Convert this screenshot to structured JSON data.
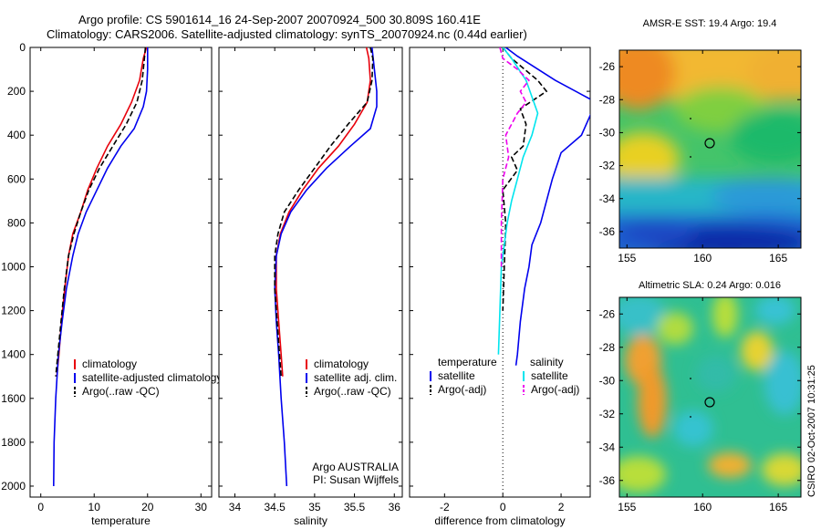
{
  "header": {
    "line1": "Argo profile: CS 5901614_16 24-Sep-2007 20070924_500 30.809S 160.41E",
    "line2": "Climatology: CARS2006. Satellite-adjusted climatology: synTS_20070924.nc (0.44d earlier)"
  },
  "side_note": "CSIRO 02-Oct-2007 10:31:25",
  "colors": {
    "climatology": "#e8000b",
    "satellite": "#0000ee",
    "argo": "#000000",
    "sal_satellite": "#00e5ee",
    "sal_argo": "#ee00ee"
  },
  "chart_data": [
    {
      "type": "line",
      "panel": "temperature",
      "xlabel": "temperature",
      "ylabel": "",
      "xlim": [
        -2,
        32
      ],
      "ylim": [
        2050,
        0
      ],
      "xticks": [
        "0",
        "10",
        "20",
        "30"
      ],
      "yticks": [
        "0",
        "200",
        "400",
        "600",
        "800",
        "1000",
        "1200",
        "1400",
        "1600",
        "1800",
        "2000"
      ],
      "legend": [
        "climatology",
        "satellite-adjusted climatology",
        "Argo(..raw -QC)"
      ],
      "series": [
        {
          "name": "climatology",
          "x": [
            19.8,
            19.2,
            18.5,
            17.0,
            15.0,
            12.5,
            10.5,
            8.8,
            7.5,
            6.0,
            5.2,
            4.5,
            3.9,
            3.4,
            3.0
          ],
          "y": [
            0,
            50,
            150,
            250,
            350,
            450,
            550,
            650,
            750,
            850,
            950,
            1100,
            1250,
            1400,
            1500
          ]
        },
        {
          "name": "satellite-adjusted climatology",
          "x": [
            20.0,
            20.0,
            19.8,
            19.2,
            17.5,
            15.0,
            12.5,
            10.5,
            8.5,
            7.0,
            6.0,
            4.8,
            4.0,
            3.3,
            2.8,
            2.5,
            2.4
          ],
          "y": [
            0,
            100,
            200,
            270,
            370,
            450,
            550,
            650,
            750,
            850,
            950,
            1100,
            1250,
            1400,
            1600,
            1800,
            2000
          ]
        },
        {
          "name": "Argo(..raw -QC)",
          "x": [
            19.6,
            19.4,
            19.0,
            18.0,
            16.0,
            13.5,
            11.0,
            9.0,
            7.5,
            6.2,
            5.2,
            4.4,
            3.8,
            3.2,
            2.8
          ],
          "y": [
            0,
            50,
            150,
            250,
            350,
            450,
            550,
            650,
            750,
            850,
            950,
            1100,
            1250,
            1400,
            1500
          ]
        }
      ]
    },
    {
      "type": "line",
      "panel": "salinity",
      "xlabel": "salinity",
      "ylabel": "",
      "xlim": [
        33.8,
        36.1
      ],
      "ylim": [
        2050,
        0
      ],
      "xticks": [
        "34",
        "34.5",
        "35",
        "35.5",
        "36"
      ],
      "legend": [
        "climatology",
        "satellite adj. clim.",
        "Argo(..raw -QC)"
      ],
      "annotation": [
        "Argo AUSTRALIA",
        "PI: Susan Wijffels"
      ],
      "series": [
        {
          "name": "climatology",
          "x": [
            35.65,
            35.68,
            35.7,
            35.66,
            35.5,
            35.3,
            35.05,
            34.85,
            34.68,
            34.57,
            34.52,
            34.52,
            34.55,
            34.58,
            34.6
          ],
          "y": [
            0,
            50,
            150,
            250,
            350,
            450,
            550,
            650,
            750,
            850,
            950,
            1100,
            1250,
            1400,
            1500
          ]
        },
        {
          "name": "satellite adj. clim.",
          "x": [
            35.72,
            35.75,
            35.78,
            35.78,
            35.7,
            35.45,
            35.15,
            34.9,
            34.7,
            34.58,
            34.52,
            34.5,
            34.52,
            34.55,
            34.58,
            34.62,
            34.65
          ],
          "y": [
            0,
            100,
            200,
            270,
            370,
            450,
            550,
            650,
            750,
            850,
            950,
            1100,
            1250,
            1400,
            1600,
            1800,
            2000
          ]
        },
        {
          "name": "Argo(..raw -QC)",
          "x": [
            35.7,
            35.73,
            35.72,
            35.66,
            35.42,
            35.2,
            35.0,
            34.8,
            34.62,
            34.54,
            34.5,
            34.5,
            34.53,
            34.56,
            34.58
          ],
          "y": [
            0,
            50,
            150,
            250,
            350,
            450,
            550,
            650,
            750,
            850,
            950,
            1100,
            1250,
            1400,
            1500
          ]
        }
      ]
    },
    {
      "type": "line",
      "panel": "difference",
      "xlabel": "difference from climatology",
      "ylabel": "",
      "xlim": [
        -3.2,
        3.0
      ],
      "ylim": [
        2050,
        0
      ],
      "xticks": [
        "-2",
        "0",
        "2"
      ],
      "legend_groups": [
        {
          "heading": "temperature",
          "items": [
            "satellite",
            "Argo(-adj)"
          ]
        },
        {
          "heading": "salinity",
          "items": [
            "satellite",
            "Argo(-adj)"
          ]
        }
      ],
      "series": [
        {
          "name": "temperature satellite",
          "x": [
            0.1,
            0.5,
            1.8,
            3.2,
            2.7,
            2.0,
            1.7,
            1.5,
            1.3,
            1.0,
            0.9,
            0.75,
            0.6,
            0.5,
            0.45
          ],
          "y": [
            0,
            40,
            150,
            250,
            400,
            480,
            600,
            700,
            800,
            900,
            1000,
            1100,
            1250,
            1400,
            1450
          ]
        },
        {
          "name": "temperature Argo(-adj)",
          "x": [
            0.0,
            0.3,
            1.2,
            1.5,
            0.6,
            0.8,
            0.7,
            0.3,
            0.5,
            0.0,
            0.1,
            0.05,
            0.0
          ],
          "y": [
            0,
            50,
            150,
            200,
            280,
            350,
            450,
            500,
            560,
            650,
            800,
            1000,
            1200
          ]
        },
        {
          "name": "salinity satellite",
          "x": [
            0.0,
            0.3,
            0.8,
            1.2,
            1.0,
            0.7,
            0.5,
            0.3,
            0.15,
            0.05,
            -0.05,
            -0.1,
            -0.15
          ],
          "y": [
            0,
            50,
            150,
            300,
            400,
            500,
            600,
            700,
            800,
            900,
            1000,
            1200,
            1400
          ]
        },
        {
          "name": "salinity Argo(-adj)",
          "x": [
            -0.1,
            0.0,
            0.5,
            0.9,
            0.6,
            0.8,
            0.5,
            0.3,
            0.1,
            0.2,
            0.0,
            -0.05,
            -0.05
          ],
          "y": [
            0,
            50,
            100,
            150,
            200,
            250,
            300,
            350,
            400,
            500,
            600,
            800,
            1000
          ]
        }
      ]
    },
    {
      "type": "heatmap",
      "panel": "sst_map",
      "title": "AMSR-E SST: 19.4  Argo: 19.4",
      "xlim": [
        154.5,
        166.5
      ],
      "ylim": [
        -37,
        -25
      ],
      "xticks": [
        "155",
        "160",
        "165"
      ],
      "yticks": [
        "-26",
        "-28",
        "-30",
        "-32",
        "-34",
        "-36"
      ],
      "marker": {
        "lon": 160.41,
        "lat": -30.809
      }
    },
    {
      "type": "heatmap",
      "panel": "sla_map",
      "title": "Altimetric SLA: 0.24  Argo: 0.016",
      "xlim": [
        154.5,
        166.5
      ],
      "ylim": [
        -37,
        -25
      ],
      "xticks": [
        "155",
        "160",
        "165"
      ],
      "yticks": [
        "-26",
        "-28",
        "-30",
        "-32",
        "-34",
        "-36"
      ],
      "marker": {
        "lon": 160.41,
        "lat": -30.809
      }
    }
  ]
}
